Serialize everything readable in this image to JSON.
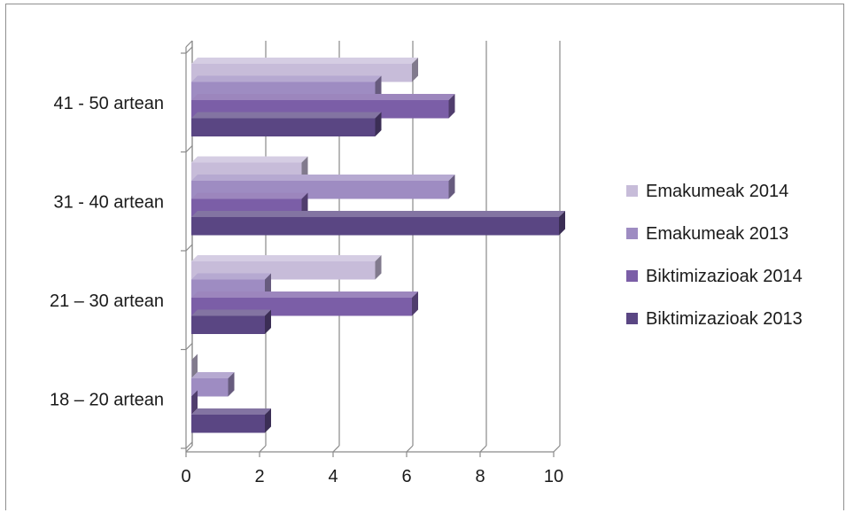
{
  "chart_data": {
    "type": "bar",
    "orientation": "horizontal",
    "categories": [
      "41 - 50 artean",
      "31 - 40 artean",
      "21 – 30 artean",
      "18 – 20 artean"
    ],
    "series": [
      {
        "name": "Emakumeak 2014",
        "color": "#c7bcd9",
        "values": [
          6,
          3,
          5,
          0
        ]
      },
      {
        "name": "Emakumeak 2013",
        "color": "#9e8cc2",
        "values": [
          5,
          7,
          2,
          1
        ]
      },
      {
        "name": "Biktimizazioak 2014",
        "color": "#7b5ea7",
        "values": [
          7,
          3,
          6,
          0
        ]
      },
      {
        "name": "Biktimizazioak 2013",
        "color": "#5a4683",
        "values": [
          5,
          10,
          2,
          2
        ]
      }
    ],
    "xlim": [
      0,
      10
    ],
    "xticks": [
      "0",
      "2",
      "4",
      "6",
      "8",
      "10"
    ],
    "grid": true,
    "legend_position": "right"
  }
}
